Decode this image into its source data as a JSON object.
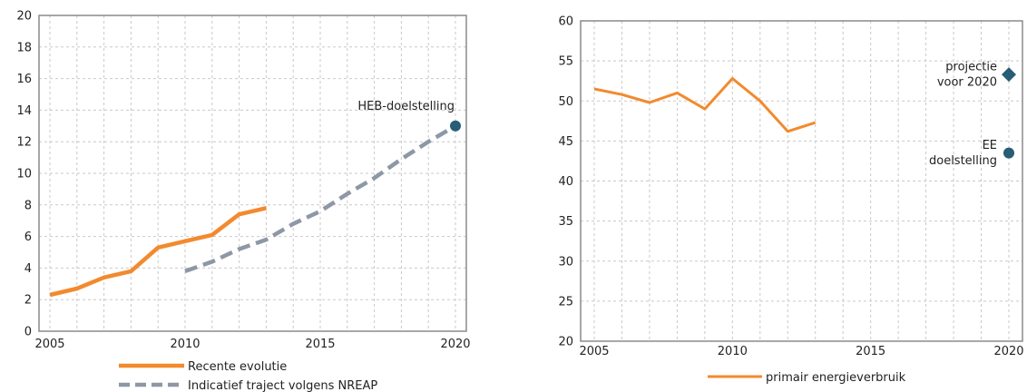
{
  "chart_data": [
    {
      "type": "line",
      "title": "",
      "xlabel": "",
      "ylabel": "",
      "xlim": [
        2005,
        2020
      ],
      "ylim": [
        0,
        20
      ],
      "xticks": [
        2005,
        2010,
        2015,
        2020
      ],
      "yticks": [
        0,
        2,
        4,
        6,
        8,
        10,
        12,
        14,
        16,
        18,
        20
      ],
      "grid": true,
      "legend_position": "bottom",
      "series": [
        {
          "name": "Recente evolutie",
          "style": "solid",
          "color": "#f28a2e",
          "x": [
            2005,
            2006,
            2007,
            2008,
            2009,
            2010,
            2011,
            2012,
            2013
          ],
          "y": [
            2.3,
            2.7,
            3.4,
            3.8,
            5.3,
            5.7,
            6.1,
            7.4,
            7.8
          ]
        },
        {
          "name": "Indicatief traject volgens NREAP",
          "style": "dashed",
          "color": "#8e97a6",
          "x": [
            2010,
            2011,
            2012,
            2013,
            2014,
            2015,
            2016,
            2017,
            2018,
            2019,
            2020
          ],
          "y": [
            3.8,
            4.4,
            5.2,
            5.8,
            6.8,
            7.6,
            8.7,
            9.7,
            10.9,
            12.0,
            13.0
          ]
        }
      ],
      "points": [
        {
          "label": "HEB-doelstelling",
          "x": 2020,
          "y": 13.0,
          "marker": "circle",
          "color": "#275d75"
        }
      ]
    },
    {
      "type": "line",
      "title": "",
      "xlabel": "",
      "ylabel": "",
      "xlim": [
        2005,
        2020
      ],
      "ylim": [
        20,
        60
      ],
      "xticks": [
        2005,
        2010,
        2015,
        2020
      ],
      "yticks": [
        20,
        25,
        30,
        35,
        40,
        45,
        50,
        55,
        60
      ],
      "grid": true,
      "legend_position": "bottom",
      "series": [
        {
          "name": "primair energieverbruik",
          "style": "solid",
          "color": "#f28a2e",
          "x": [
            2005,
            2006,
            2007,
            2008,
            2009,
            2010,
            2011,
            2012,
            2013
          ],
          "y": [
            51.5,
            50.8,
            49.8,
            51.0,
            49.0,
            52.8,
            50.0,
            46.2,
            47.3
          ]
        }
      ],
      "points": [
        {
          "label_lines": [
            "projectie",
            "voor 2020"
          ],
          "x": 2020,
          "y": 53.3,
          "marker": "diamond",
          "color": "#275d75"
        },
        {
          "label_lines": [
            "EE",
            "doelstelling"
          ],
          "x": 2020,
          "y": 43.5,
          "marker": "circle",
          "color": "#275d75"
        }
      ]
    }
  ]
}
